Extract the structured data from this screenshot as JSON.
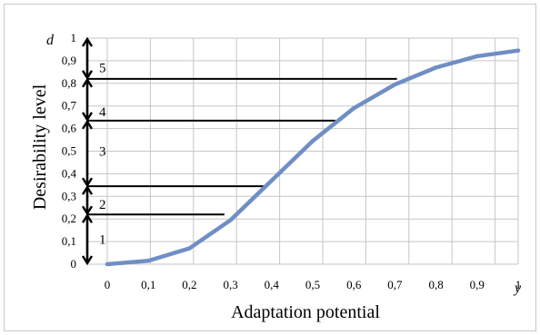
{
  "chart_data": {
    "type": "line",
    "xlabel": "Adaptation potential",
    "ylabel": "Desirability level",
    "x_var": "y",
    "y_var": "d",
    "xlim": [
      0,
      1
    ],
    "ylim": [
      0,
      1
    ],
    "x_ticks": [
      "0",
      "0,1",
      "0,2",
      "0,3",
      "0,4",
      "0,5",
      "0,6",
      "0,7",
      "0,8",
      "0,9",
      "1"
    ],
    "y_ticks": [
      "0",
      "0,1",
      "0,2",
      "0,3",
      "0,4",
      "0,5",
      "0,6",
      "0,7",
      "0,8",
      "0,9",
      "1"
    ],
    "grid": true,
    "series": [
      {
        "color": "#6f8fc4",
        "x": [
          0,
          0.1,
          0.2,
          0.3,
          0.4,
          0.5,
          0.6,
          0.7,
          0.8,
          0.9,
          1.0
        ],
        "y": [
          0.0,
          0.015,
          0.07,
          0.195,
          0.37,
          0.545,
          0.69,
          0.795,
          0.87,
          0.92,
          0.945
        ]
      }
    ],
    "threshold_lines": [
      {
        "y": 0.22,
        "x_end": 0.285
      },
      {
        "y": 0.345,
        "x_end": 0.385
      },
      {
        "y": 0.635,
        "x_end": 0.555
      },
      {
        "y": 0.82,
        "x_end": 0.705
      }
    ],
    "zone_arrows": [
      {
        "from": 0.0,
        "to": 0.22
      },
      {
        "from": 0.22,
        "to": 0.345
      },
      {
        "from": 0.345,
        "to": 0.635
      },
      {
        "from": 0.635,
        "to": 0.82
      },
      {
        "from": 0.82,
        "to": 1.0
      }
    ],
    "zones": [
      {
        "label": "1",
        "y": 0.11
      },
      {
        "label": "2",
        "y": 0.265
      },
      {
        "label": "3",
        "y": 0.5
      },
      {
        "label": "4",
        "y": 0.675
      },
      {
        "label": "5",
        "y": 0.87
      }
    ]
  }
}
